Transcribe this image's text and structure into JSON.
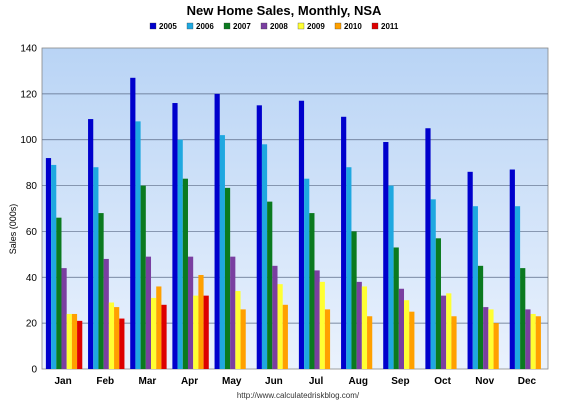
{
  "chart_data": {
    "type": "bar",
    "title": "New Home Sales, Monthly, NSA",
    "ylabel": "Sales (000s)",
    "xlabel": "",
    "ylim": [
      0,
      140
    ],
    "yticks": [
      0,
      20,
      40,
      60,
      80,
      100,
      120,
      140
    ],
    "grid": true,
    "legend_position": "top",
    "categories": [
      "Jan",
      "Feb",
      "Mar",
      "Apr",
      "May",
      "Jun",
      "Jul",
      "Aug",
      "Sep",
      "Oct",
      "Nov",
      "Dec"
    ],
    "series": [
      {
        "name": "2005",
        "color": "#0000cc",
        "values": [
          92,
          109,
          127,
          116,
          120,
          115,
          117,
          110,
          99,
          105,
          86,
          87
        ]
      },
      {
        "name": "2006",
        "color": "#1fa8e0",
        "values": [
          89,
          88,
          108,
          100,
          102,
          98,
          83,
          88,
          80,
          74,
          71,
          71
        ]
      },
      {
        "name": "2007",
        "color": "#0b7a1f",
        "values": [
          66,
          68,
          80,
          83,
          79,
          73,
          68,
          60,
          53,
          57,
          45,
          44
        ]
      },
      {
        "name": "2008",
        "color": "#7a3fa0",
        "values": [
          44,
          48,
          49,
          49,
          49,
          45,
          43,
          38,
          35,
          32,
          27,
          26
        ]
      },
      {
        "name": "2009",
        "color": "#ffff33",
        "values": [
          24,
          29,
          31,
          32,
          34,
          37,
          38,
          36,
          30,
          33,
          26,
          24
        ]
      },
      {
        "name": "2010",
        "color": "#ffa000",
        "values": [
          24,
          27,
          36,
          41,
          26,
          28,
          26,
          23,
          25,
          23,
          20,
          23
        ]
      },
      {
        "name": "2011",
        "color": "#dd0000",
        "values": [
          21,
          22,
          28,
          32,
          null,
          null,
          null,
          null,
          null,
          null,
          null,
          null
        ]
      }
    ],
    "footer": "http://www.calculatedriskblog.com/"
  }
}
